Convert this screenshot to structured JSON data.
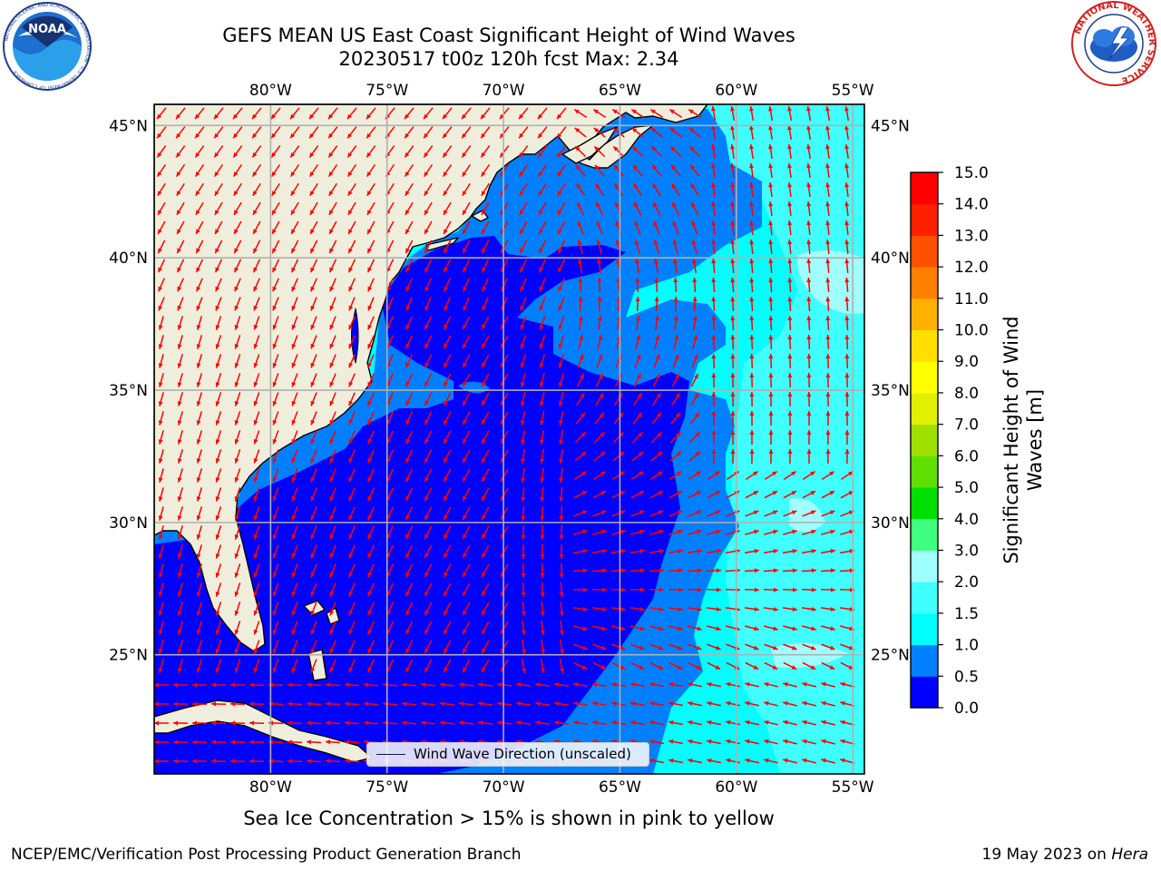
{
  "header": {
    "title_line1": "GEFS MEAN US East Coast Significant Height of Wind Waves",
    "title_line2": "20230517 t00z 120h fcst   Max: 2.34"
  },
  "logos": {
    "noaa_text": "NOAA",
    "noaa_ring_text": "NATIONAL OCEANIC AND ATMOSPHERIC ADMINISTRATION · U.S. DEPARTMENT OF COMMERCE",
    "nws_ring_text": "NATIONAL WEATHER SERVICE"
  },
  "map": {
    "lon_labels": [
      "80°W",
      "75°W",
      "70°W",
      "65°W",
      "60°W",
      "55°W"
    ],
    "lat_labels": [
      "45°N",
      "40°N",
      "35°N",
      "30°N",
      "25°N"
    ],
    "lon_values": [
      -80,
      -75,
      -70,
      -65,
      -60,
      -55
    ],
    "lat_values": [
      45,
      40,
      35,
      30,
      25
    ],
    "lon_range": [
      -85,
      -54.5
    ],
    "lat_range": [
      20.5,
      45.8
    ],
    "land_color": "#efeedc",
    "arrow_color": "#ff0000",
    "legend_label": "Wind Wave Direction (unscaled)",
    "max_value": 2.34
  },
  "colorbar": {
    "label": "Significant Height of Wind Waves [m]",
    "tick_labels": [
      "0.0",
      "0.5",
      "1.0",
      "1.5",
      "2.0",
      "3.0",
      "4.0",
      "5.0",
      "6.0",
      "7.0",
      "8.0",
      "9.0",
      "10.0",
      "11.0",
      "12.0",
      "13.0",
      "14.0",
      "15.0"
    ],
    "colors": [
      "#0000ff",
      "#0080ff",
      "#00ffff",
      "#40ffff",
      "#a0ffff",
      "#40ff80",
      "#00e000",
      "#60e000",
      "#a0e000",
      "#e0f000",
      "#ffff00",
      "#ffe000",
      "#ffb000",
      "#ff8000",
      "#ff5000",
      "#ff2000",
      "#ff0000"
    ]
  },
  "note": "Sea Ice Concentration > 15% is shown in pink to yellow",
  "footer": {
    "left": "NCEP/EMC/Verification Post Processing Product Generation Branch",
    "right_date": "19 May 2023 on",
    "right_machine": "Hera"
  }
}
